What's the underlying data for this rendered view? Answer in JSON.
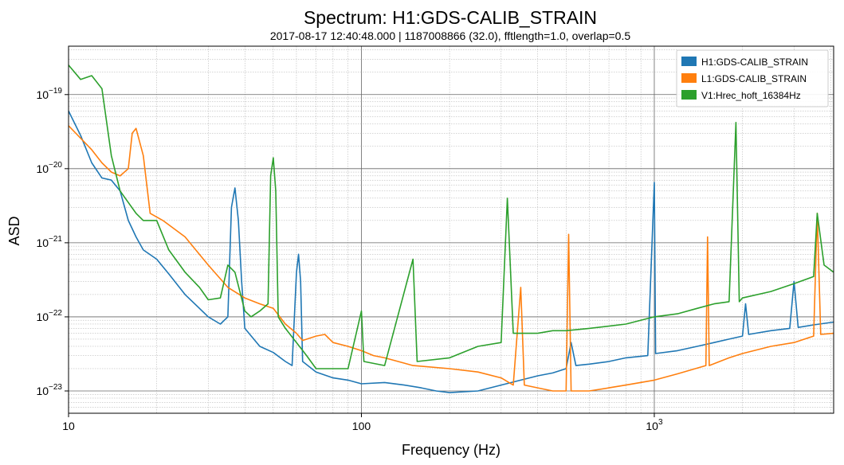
{
  "chart_data": {
    "type": "line",
    "title": "Spectrum: H1:GDS-CALIB_STRAIN",
    "subtitle": "2017-08-17 12:40:48.000 | 1187008866 (32.0), fftlength=1.0, overlap=0.5",
    "xlabel": "Frequency (Hz)",
    "ylabel": "ASD",
    "x_scale": "log",
    "y_scale": "log",
    "xlim": [
      10,
      4096
    ],
    "ylim": [
      5e-24,
      4.5e-19
    ],
    "x_ticks": [
      {
        "value": 10,
        "label": "10"
      },
      {
        "value": 100,
        "label": "100"
      },
      {
        "value": 1000,
        "label": "10",
        "exp": "3"
      }
    ],
    "y_ticks": [
      {
        "value": 1e-23,
        "label": "10",
        "exp": "−23"
      },
      {
        "value": 1e-22,
        "label": "10",
        "exp": "−22"
      },
      {
        "value": 1e-21,
        "label": "10",
        "exp": "−21"
      },
      {
        "value": 1e-20,
        "label": "10",
        "exp": "−20"
      },
      {
        "value": 1e-19,
        "label": "10",
        "exp": "−19"
      }
    ],
    "grid": true,
    "legend_position": "top-right",
    "series": [
      {
        "name": "H1:GDS-CALIB_STRAIN",
        "color": "#1f77b4",
        "points": [
          [
            10,
            6e-20
          ],
          [
            11,
            2.8e-20
          ],
          [
            12,
            1.2e-20
          ],
          [
            13,
            7.5e-21
          ],
          [
            14,
            7e-21
          ],
          [
            15,
            5e-21
          ],
          [
            16,
            2e-21
          ],
          [
            17,
            1.2e-21
          ],
          [
            18,
            8e-22
          ],
          [
            20,
            6e-22
          ],
          [
            22,
            3.8e-22
          ],
          [
            25,
            2e-22
          ],
          [
            28,
            1.3e-22
          ],
          [
            30,
            1e-22
          ],
          [
            33,
            8e-23
          ],
          [
            35,
            1e-22
          ],
          [
            36,
            3e-21
          ],
          [
            37,
            5.5e-21
          ],
          [
            38,
            2e-21
          ],
          [
            39,
            3e-22
          ],
          [
            40,
            7e-23
          ],
          [
            45,
            4e-23
          ],
          [
            50,
            3.3e-23
          ],
          [
            55,
            2.5e-23
          ],
          [
            58,
            2.2e-23
          ],
          [
            60,
            4e-22
          ],
          [
            61,
            7e-22
          ],
          [
            62,
            3e-22
          ],
          [
            63,
            2.5e-23
          ],
          [
            70,
            1.8e-23
          ],
          [
            80,
            1.5e-23
          ],
          [
            90,
            1.4e-23
          ],
          [
            100,
            1.25e-23
          ],
          [
            120,
            1.3e-23
          ],
          [
            140,
            1.2e-23
          ],
          [
            160,
            1.1e-23
          ],
          [
            180,
            1e-23
          ],
          [
            200,
            9.5e-24
          ],
          [
            250,
            1e-23
          ],
          [
            300,
            1.2e-23
          ],
          [
            350,
            1.4e-23
          ],
          [
            400,
            1.6e-23
          ],
          [
            450,
            1.75e-23
          ],
          [
            500,
            2e-23
          ],
          [
            520,
            4.5e-23
          ],
          [
            540,
            2.2e-23
          ],
          [
            600,
            2.3e-23
          ],
          [
            700,
            2.5e-23
          ],
          [
            800,
            2.8e-23
          ],
          [
            950,
            3e-23
          ],
          [
            1000,
            6.5e-21
          ],
          [
            1010,
            3.2e-23
          ],
          [
            1200,
            3.5e-23
          ],
          [
            1400,
            4e-23
          ],
          [
            1600,
            4.5e-23
          ],
          [
            1800,
            5e-23
          ],
          [
            2000,
            5.5e-23
          ],
          [
            2050,
            1.5e-22
          ],
          [
            2100,
            5.8e-23
          ],
          [
            2500,
            6.5e-23
          ],
          [
            2900,
            7e-23
          ],
          [
            3000,
            3e-22
          ],
          [
            3100,
            7.2e-23
          ],
          [
            3500,
            7.8e-23
          ],
          [
            4096,
            8.5e-23
          ]
        ]
      },
      {
        "name": "L1:GDS-CALIB_STRAIN",
        "color": "#ff7f0e",
        "points": [
          [
            10,
            3.8e-20
          ],
          [
            12,
            1.8e-20
          ],
          [
            13,
            1.2e-20
          ],
          [
            14,
            9e-21
          ],
          [
            15,
            8e-21
          ],
          [
            16,
            1e-20
          ],
          [
            16.5,
            3e-20
          ],
          [
            17,
            3.5e-20
          ],
          [
            18,
            1.5e-20
          ],
          [
            19,
            2.5e-21
          ],
          [
            21,
            2e-21
          ],
          [
            25,
            1.2e-21
          ],
          [
            30,
            5e-22
          ],
          [
            35,
            2.5e-22
          ],
          [
            40,
            1.8e-22
          ],
          [
            45,
            1.5e-22
          ],
          [
            50,
            1.3e-22
          ],
          [
            55,
            8e-23
          ],
          [
            60,
            6e-23
          ],
          [
            63,
            4.8e-23
          ],
          [
            70,
            5.5e-23
          ],
          [
            75,
            5.8e-23
          ],
          [
            80,
            4.5e-23
          ],
          [
            90,
            4e-23
          ],
          [
            100,
            3.5e-23
          ],
          [
            110,
            3e-23
          ],
          [
            120,
            2.8e-23
          ],
          [
            150,
            2.2e-23
          ],
          [
            200,
            2e-23
          ],
          [
            250,
            1.8e-23
          ],
          [
            300,
            1.5e-23
          ],
          [
            330,
            1.2e-23
          ],
          [
            350,
            2.5e-22
          ],
          [
            360,
            1.2e-23
          ],
          [
            400,
            1.1e-23
          ],
          [
            450,
            1e-23
          ],
          [
            500,
            1e-23
          ],
          [
            510,
            1.3e-21
          ],
          [
            520,
            1e-23
          ],
          [
            600,
            1e-23
          ],
          [
            700,
            1.1e-23
          ],
          [
            800,
            1.2e-23
          ],
          [
            1000,
            1.4e-23
          ],
          [
            1200,
            1.7e-23
          ],
          [
            1500,
            2.2e-23
          ],
          [
            1520,
            1.2e-21
          ],
          [
            1540,
            2.2e-23
          ],
          [
            1800,
            2.8e-23
          ],
          [
            2000,
            3.2e-23
          ],
          [
            2500,
            4e-23
          ],
          [
            3000,
            4.5e-23
          ],
          [
            3500,
            5.5e-23
          ],
          [
            3600,
            2.5e-21
          ],
          [
            3700,
            5.8e-23
          ],
          [
            4096,
            6e-23
          ]
        ]
      },
      {
        "name": "V1:Hrec_hoft_16384Hz",
        "color": "#2ca02c",
        "points": [
          [
            10,
            2.5e-19
          ],
          [
            11,
            1.6e-19
          ],
          [
            12,
            1.8e-19
          ],
          [
            13,
            1.2e-19
          ],
          [
            14,
            1.5e-20
          ],
          [
            15,
            5e-21
          ],
          [
            16,
            3.5e-21
          ],
          [
            17,
            2.5e-21
          ],
          [
            18,
            2e-21
          ],
          [
            20,
            2e-21
          ],
          [
            22,
            8e-22
          ],
          [
            25,
            4e-22
          ],
          [
            28,
            2.5e-22
          ],
          [
            30,
            1.7e-22
          ],
          [
            33,
            1.8e-22
          ],
          [
            35,
            5e-22
          ],
          [
            37,
            4e-22
          ],
          [
            40,
            1.2e-22
          ],
          [
            42,
            1e-22
          ],
          [
            45,
            1.2e-22
          ],
          [
            48,
            1.5e-22
          ],
          [
            49,
            8e-21
          ],
          [
            50,
            1.4e-20
          ],
          [
            51,
            5e-21
          ],
          [
            52,
            1e-22
          ],
          [
            55,
            7e-23
          ],
          [
            60,
            4.5e-23
          ],
          [
            65,
            3e-23
          ],
          [
            70,
            2e-23
          ],
          [
            80,
            2e-23
          ],
          [
            90,
            2e-23
          ],
          [
            100,
            1.2e-22
          ],
          [
            102,
            2.5e-23
          ],
          [
            120,
            2.2e-23
          ],
          [
            150,
            6e-22
          ],
          [
            155,
            2.5e-23
          ],
          [
            200,
            2.8e-23
          ],
          [
            250,
            4e-23
          ],
          [
            300,
            4.5e-23
          ],
          [
            315,
            4e-21
          ],
          [
            330,
            6e-23
          ],
          [
            400,
            6e-23
          ],
          [
            450,
            6.5e-23
          ],
          [
            500,
            6.5e-23
          ],
          [
            600,
            7e-23
          ],
          [
            700,
            7.5e-23
          ],
          [
            800,
            8e-23
          ],
          [
            1000,
            1e-22
          ],
          [
            1200,
            1.1e-22
          ],
          [
            1400,
            1.3e-22
          ],
          [
            1600,
            1.5e-22
          ],
          [
            1800,
            1.6e-22
          ],
          [
            1900,
            4.2e-20
          ],
          [
            1950,
            1.6e-22
          ],
          [
            2000,
            1.8e-22
          ],
          [
            2500,
            2.2e-22
          ],
          [
            3000,
            2.8e-22
          ],
          [
            3500,
            3.5e-22
          ],
          [
            3600,
            2.5e-21
          ],
          [
            3800,
            5e-22
          ],
          [
            4096,
            4e-22
          ]
        ]
      }
    ]
  }
}
